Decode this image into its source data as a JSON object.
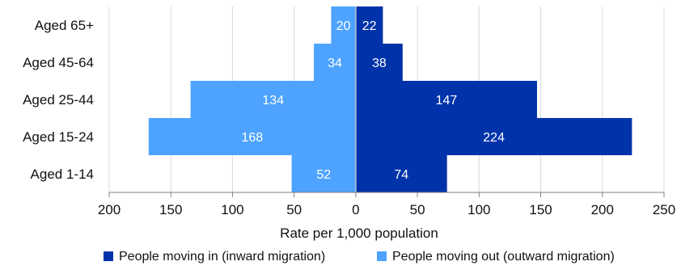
{
  "chart_data": {
    "type": "bar",
    "orientation": "horizontal-diverging",
    "categories": [
      "Aged 65+",
      "Aged 45-64",
      "Aged 25-44",
      "Aged 15-24",
      "Aged 1-14"
    ],
    "series": [
      {
        "name": "People moving in (inward migration)",
        "values": [
          22,
          38,
          147,
          224,
          74
        ],
        "color": "#0033aa",
        "direction": "positive"
      },
      {
        "name": "People moving out (outward migration)",
        "values": [
          20,
          34,
          134,
          168,
          52
        ],
        "color": "#4da3ff",
        "direction": "negative"
      }
    ],
    "xlabel": "Rate per 1,000 population",
    "xlim": [
      -200,
      250
    ],
    "xticks": [
      -200,
      -150,
      -100,
      -50,
      0,
      50,
      100,
      150,
      200,
      250
    ],
    "xtick_labels": [
      "200",
      "150",
      "100",
      "50",
      "0",
      "50",
      "100",
      "150",
      "200",
      "250"
    ],
    "grid": "vertical",
    "legend_position": "bottom"
  }
}
